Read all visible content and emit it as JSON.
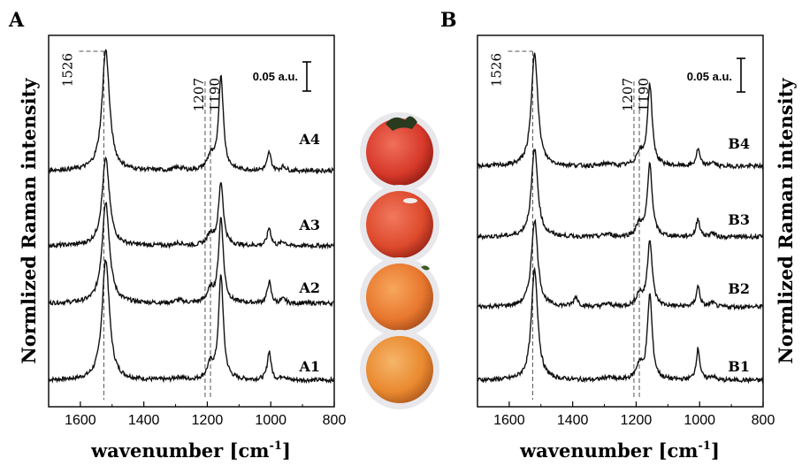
{
  "chart_data": [
    {
      "type": "line",
      "panel_label": "A",
      "xlabel": "wavenumber",
      "xlabel_unit": "[cm",
      "xlabel_unit_exp": "-1",
      "xlabel_unit_end": "]",
      "ylabel": "Normlized Raman intensity",
      "xlim": [
        1700,
        800
      ],
      "xticks": [
        1600,
        1400,
        1200,
        1000,
        800
      ],
      "scale_bar": "0.05 a.u.",
      "markers": [
        {
          "label": "1526",
          "x": 1526
        },
        {
          "label": "1207",
          "x": 1207
        },
        {
          "label": "1190",
          "x": 1190
        }
      ],
      "series": [
        {
          "name": "A1",
          "peaks": [
            {
              "x": 1520,
              "h": 1.0,
              "w": 14
            },
            {
              "x": 1157,
              "h": 0.86,
              "w": 9
            },
            {
              "x": 1005,
              "h": 0.24,
              "w": 7
            },
            {
              "x": 1190,
              "h": 0.12,
              "w": 12
            }
          ]
        },
        {
          "name": "A2",
          "peaks": [
            {
              "x": 1520,
              "h": 0.84,
              "w": 14
            },
            {
              "x": 1157,
              "h": 0.7,
              "w": 9
            },
            {
              "x": 1005,
              "h": 0.18,
              "w": 7
            },
            {
              "x": 1190,
              "h": 0.1,
              "w": 12
            }
          ]
        },
        {
          "name": "A3",
          "peaks": [
            {
              "x": 1520,
              "h": 0.72,
              "w": 14
            },
            {
              "x": 1157,
              "h": 0.52,
              "w": 9
            },
            {
              "x": 1005,
              "h": 0.15,
              "w": 7
            },
            {
              "x": 1190,
              "h": 0.09,
              "w": 12
            }
          ]
        },
        {
          "name": "A4",
          "peaks": [
            {
              "x": 1520,
              "h": 1.0,
              "w": 14
            },
            {
              "x": 1157,
              "h": 0.78,
              "w": 9
            },
            {
              "x": 1005,
              "h": 0.15,
              "w": 7
            },
            {
              "x": 1190,
              "h": 0.11,
              "w": 12
            }
          ]
        }
      ]
    },
    {
      "type": "line",
      "panel_label": "B",
      "xlabel": "wavenumber",
      "xlabel_unit": "[cm",
      "xlabel_unit_exp": "-1",
      "xlabel_unit_end": "]",
      "ylabel": "Normlized Raman intensity",
      "xlim": [
        1700,
        800
      ],
      "xticks": [
        1600,
        1400,
        1200,
        1000,
        800
      ],
      "scale_bar": "0.05 a.u.",
      "markers": [
        {
          "label": "1526",
          "x": 1526
        },
        {
          "label": "1207",
          "x": 1207
        },
        {
          "label": "1190",
          "x": 1190
        }
      ],
      "series": [
        {
          "name": "B1",
          "peaks": [
            {
              "x": 1520,
              "h": 0.92,
              "w": 12
            },
            {
              "x": 1157,
              "h": 0.7,
              "w": 9
            },
            {
              "x": 1005,
              "h": 0.26,
              "w": 7
            },
            {
              "x": 1190,
              "h": 0.12,
              "w": 12
            }
          ]
        },
        {
          "name": "B2",
          "peaks": [
            {
              "x": 1520,
              "h": 0.72,
              "w": 12
            },
            {
              "x": 1157,
              "h": 0.55,
              "w": 9
            },
            {
              "x": 1005,
              "h": 0.17,
              "w": 7
            },
            {
              "x": 1390,
              "h": 0.08,
              "w": 8
            },
            {
              "x": 1190,
              "h": 0.1,
              "w": 12
            }
          ]
        },
        {
          "name": "B3",
          "peaks": [
            {
              "x": 1520,
              "h": 0.73,
              "w": 12
            },
            {
              "x": 1157,
              "h": 0.6,
              "w": 9
            },
            {
              "x": 1005,
              "h": 0.15,
              "w": 7
            },
            {
              "x": 1190,
              "h": 0.1,
              "w": 12
            }
          ]
        },
        {
          "name": "B4",
          "peaks": [
            {
              "x": 1520,
              "h": 0.95,
              "w": 12
            },
            {
              "x": 1157,
              "h": 0.67,
              "w": 9
            },
            {
              "x": 1005,
              "h": 0.14,
              "w": 7
            },
            {
              "x": 1190,
              "h": 0.1,
              "w": 12
            }
          ]
        }
      ]
    }
  ],
  "photos": [
    {
      "name": "tomato-1",
      "color": "#d7392a"
    },
    {
      "name": "tomato-2",
      "color": "#dd4a2c"
    },
    {
      "name": "tomato-3",
      "color": "#e8772e"
    },
    {
      "name": "tomato-4",
      "color": "#e9892f"
    }
  ]
}
